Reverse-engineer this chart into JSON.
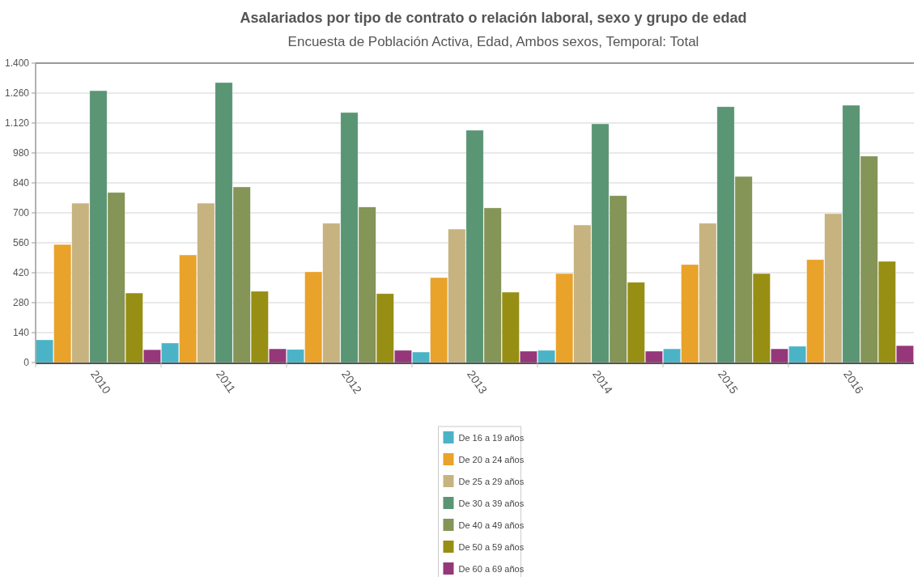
{
  "chart_data": {
    "type": "bar",
    "title": "Asalariados por tipo de contrato o relación laboral, sexo y grupo de edad",
    "subtitle": "Encuesta de Población Activa, Edad, Ambos sexos, Temporal: Total",
    "categories": [
      "2010",
      "2011",
      "2012",
      "2013",
      "2014",
      "2015",
      "2016"
    ],
    "series": [
      {
        "name": "De 16 a 19 años",
        "color": "#4bb3c6",
        "values": [
          106,
          91,
          61,
          49,
          57,
          64,
          76
        ]
      },
      {
        "name": "De 20 a 24 años",
        "color": "#e9a22a",
        "values": [
          552,
          503,
          424,
          397,
          416,
          458,
          481
        ]
      },
      {
        "name": "De 25 a 29 años",
        "color": "#c6b37f",
        "values": [
          745,
          745,
          651,
          624,
          643,
          651,
          696
        ]
      },
      {
        "name": "De 30 a 39 años",
        "color": "#5a9574",
        "values": [
          1271,
          1309,
          1169,
          1086,
          1116,
          1196,
          1203
        ]
      },
      {
        "name": "De 40 a 49 años",
        "color": "#859457",
        "values": [
          795,
          821,
          727,
          723,
          780,
          870,
          965
        ]
      },
      {
        "name": "De 50 a 59 años",
        "color": "#978e14",
        "values": [
          325,
          333,
          322,
          329,
          375,
          416,
          473
        ]
      },
      {
        "name": "De 60 a 69 años",
        "color": "#96377a",
        "values": [
          60,
          64,
          57,
          53,
          53,
          64,
          79
        ]
      }
    ],
    "ylim": [
      0,
      1400
    ],
    "yticks": [
      0,
      {
        "value": 140,
        "label": "140"
      },
      {
        "value": 280,
        "label": "280"
      },
      {
        "value": 420,
        "label": "420"
      },
      {
        "value": 560,
        "label": "560"
      },
      {
        "value": 700,
        "label": "700"
      },
      {
        "value": 840,
        "label": "840"
      },
      {
        "value": 980,
        "label": "980"
      },
      {
        "value": 1120,
        "label": "1.120"
      },
      {
        "value": 1260,
        "label": "1.260"
      },
      {
        "value": 1400,
        "label": "1.400"
      }
    ],
    "grid": "y",
    "legend": "bottom"
  }
}
